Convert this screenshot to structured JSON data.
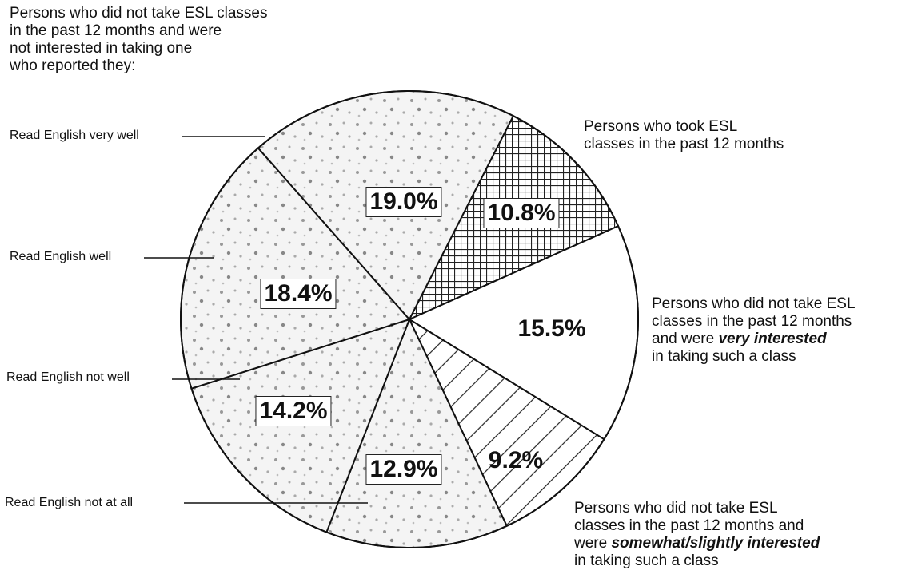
{
  "chart_data": {
    "type": "pie",
    "group_title": "Persons who did not take ESL classes\nin the past 12 months and were\nnot interested in taking one\nwho reported they:",
    "categories": [
      [
        "Persons who took ESL\nclasses in the past 12 months"
      ],
      [
        "Persons who did not take ESL\nclasses in the past 12 months\nand were ",
        "very interested",
        "\nin taking such a class"
      ],
      [
        "Persons who did not take ESL\nclasses in the past 12 months and\nwere ",
        "somewhat/slightly interested",
        "\nin taking such a class"
      ],
      [
        "Read English not at all"
      ],
      [
        "Read English not well"
      ],
      [
        "Read English well"
      ],
      [
        "Read English very well"
      ]
    ],
    "values": [
      10.8,
      15.5,
      9.2,
      12.9,
      14.2,
      18.4,
      19.0
    ],
    "value_labels": [
      "10.8%",
      "15.5%",
      "9.2%",
      "12.9%",
      "14.2%",
      "18.4%",
      "19.0%"
    ],
    "patterns": [
      "crosshatch",
      "none",
      "hatch",
      "stipple",
      "stipple",
      "stipple",
      "stipple"
    ]
  }
}
